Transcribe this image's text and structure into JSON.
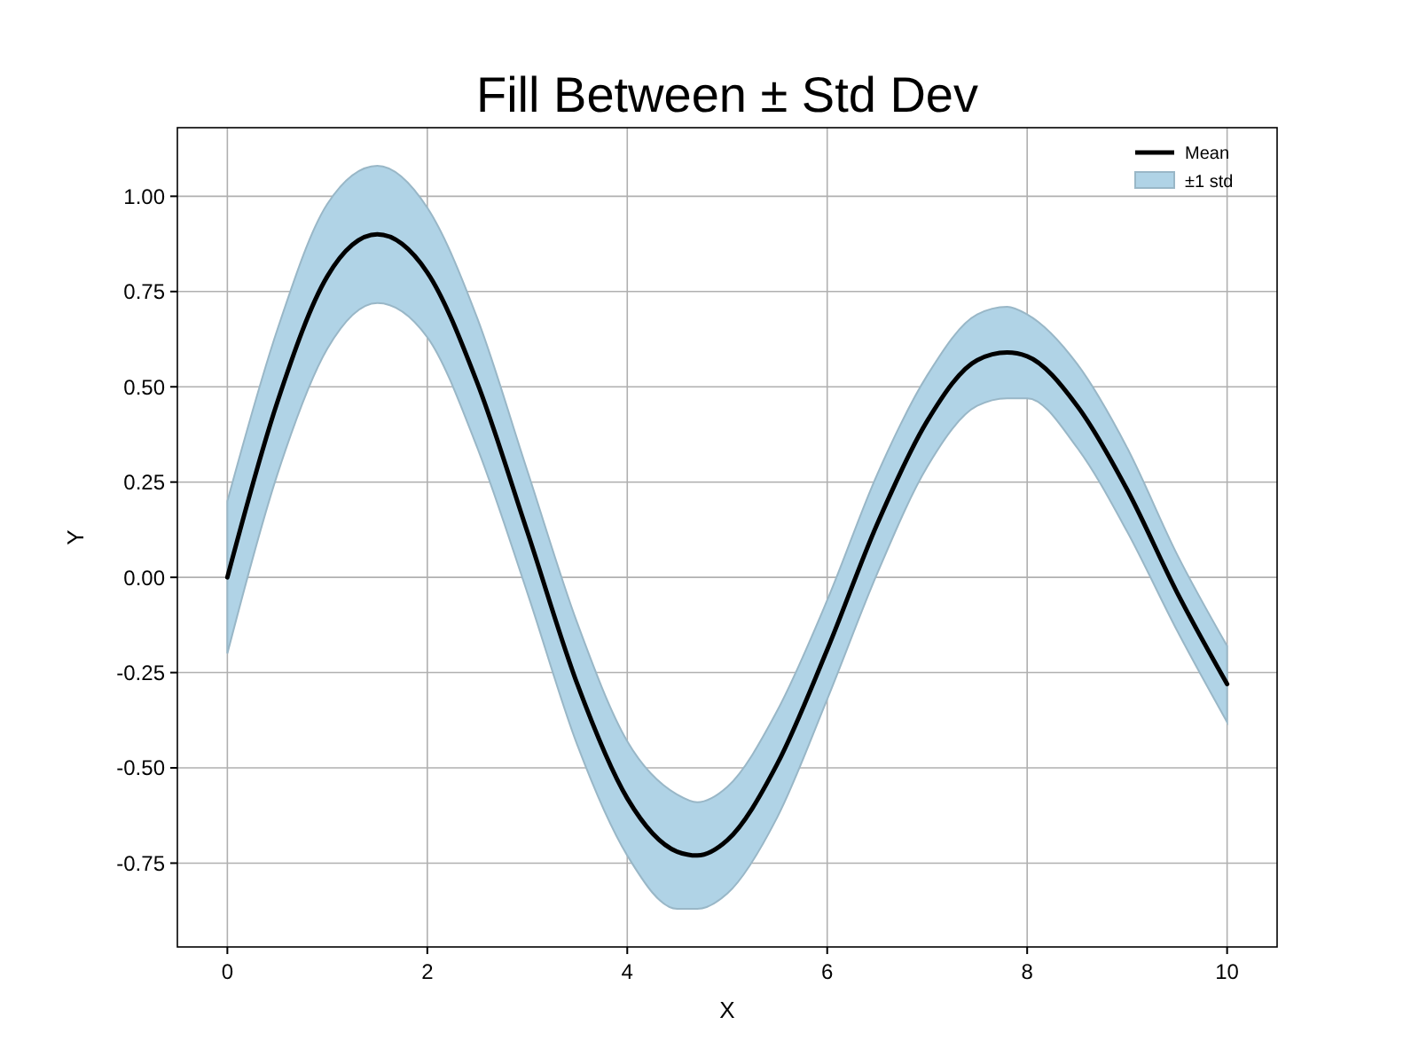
{
  "chart_data": {
    "type": "line",
    "title": "Fill Between ± Std Dev",
    "xlabel": "X",
    "ylabel": "Y",
    "annotations": [
      "±1 std"
    ],
    "x": [
      0,
      0.5,
      1,
      1.5,
      2,
      2.5,
      3,
      3.5,
      4,
      4.5,
      4.7,
      5,
      5.5,
      6,
      6.5,
      7,
      7.5,
      7.8,
      8,
      8.5,
      9,
      9.5,
      10
    ],
    "series": [
      {
        "name": "Mean",
        "color": "#000000",
        "values": [
          0.0,
          0.46,
          0.79,
          0.9,
          0.8,
          0.51,
          0.12,
          -0.28,
          -0.58,
          -0.72,
          -0.73,
          -0.69,
          -0.49,
          -0.19,
          0.14,
          0.41,
          0.57,
          0.59,
          0.58,
          0.45,
          0.23,
          -0.04,
          -0.28
        ],
        "lower": [
          -0.2,
          0.27,
          0.6,
          0.72,
          0.63,
          0.34,
          -0.04,
          -0.44,
          -0.73,
          -0.87,
          -0.87,
          -0.83,
          -0.63,
          -0.32,
          0.01,
          0.29,
          0.45,
          0.47,
          0.47,
          0.34,
          0.12,
          -0.14,
          -0.38
        ],
        "upper": [
          0.2,
          0.65,
          0.98,
          1.08,
          0.97,
          0.68,
          0.28,
          -0.12,
          -0.43,
          -0.57,
          -0.59,
          -0.55,
          -0.35,
          -0.06,
          0.27,
          0.53,
          0.69,
          0.71,
          0.69,
          0.56,
          0.34,
          0.06,
          -0.18
        ]
      }
    ],
    "xlim": [
      -0.5,
      10.5
    ],
    "ylim": [
      -0.97,
      1.18
    ],
    "xticks": [
      0,
      2,
      4,
      6,
      8,
      10
    ],
    "yticks": [
      {
        "value": -0.75,
        "label": "-0.75"
      },
      {
        "value": -0.5,
        "label": "-0.50"
      },
      {
        "value": -0.25,
        "label": "-0.25"
      },
      {
        "value": 0,
        "label": "0.00"
      },
      {
        "value": 0.25,
        "label": "0.25"
      },
      {
        "value": 0.5,
        "label": "0.50"
      },
      {
        "value": 0.75,
        "label": "0.75"
      },
      {
        "value": 1,
        "label": "1.00"
      }
    ],
    "grid": true,
    "legend": "top right"
  }
}
